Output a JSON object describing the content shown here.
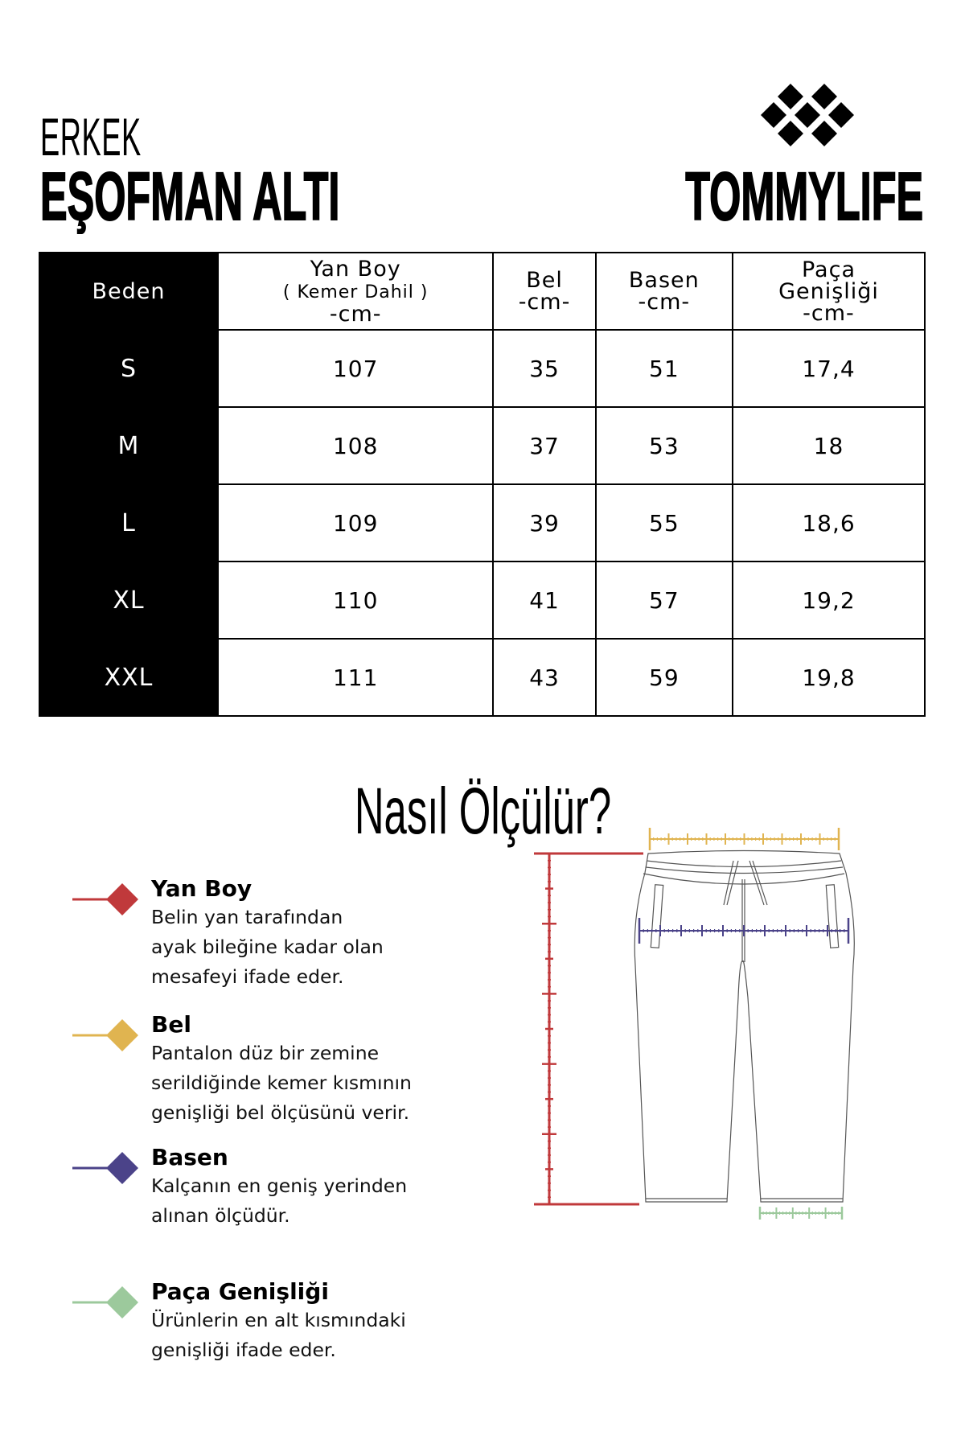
{
  "header": {
    "category": "ERKEK",
    "product": "EŞOFMAN ALTI",
    "brand": "TOMMYLIFE"
  },
  "table": {
    "columns": [
      {
        "title": "Beden"
      },
      {
        "title": "Yan Boy",
        "sub": "( Kemer Dahil )",
        "unit": "-cm-"
      },
      {
        "title": "Bel",
        "unit": "-cm-"
      },
      {
        "title": "Basen",
        "unit": "-cm-"
      },
      {
        "title": "Paça",
        "title2": "Genişliği",
        "unit": "-cm-"
      }
    ],
    "rows": [
      {
        "size": "S",
        "yan_boy": "107",
        "bel": "35",
        "basen": "51",
        "paca": "17,4"
      },
      {
        "size": "M",
        "yan_boy": "108",
        "bel": "37",
        "basen": "53",
        "paca": "18"
      },
      {
        "size": "L",
        "yan_boy": "109",
        "bel": "39",
        "basen": "55",
        "paca": "18,6"
      },
      {
        "size": "XL",
        "yan_boy": "110",
        "bel": "41",
        "basen": "57",
        "paca": "19,2"
      },
      {
        "size": "XXL",
        "yan_boy": "111",
        "bel": "43",
        "basen": "59",
        "paca": "19,8"
      }
    ]
  },
  "howto": {
    "title": "Nasıl Ölçülür?",
    "items": [
      {
        "title": "Yan Boy",
        "lines": [
          "Belin yan tarafından",
          "ayak bileğine kadar olan",
          "mesafeyi ifade eder."
        ],
        "color": "#c0393b"
      },
      {
        "title": "Bel",
        "lines": [
          "Pantalon düz bir zemine",
          "serildiğinde kemer kısmının",
          "genişliği bel ölçüsünü verir."
        ],
        "color": "#e0b450"
      },
      {
        "title": "Basen",
        "lines": [
          "Kalçanın en geniş yerinden",
          "alınan ölçüdür."
        ],
        "color": "#4b4389"
      },
      {
        "title": "Paça Genişliği",
        "lines": [
          "Ürünlerin en alt kısmındaki",
          "genişliği ifade eder."
        ],
        "color": "#9cc99c"
      }
    ]
  }
}
